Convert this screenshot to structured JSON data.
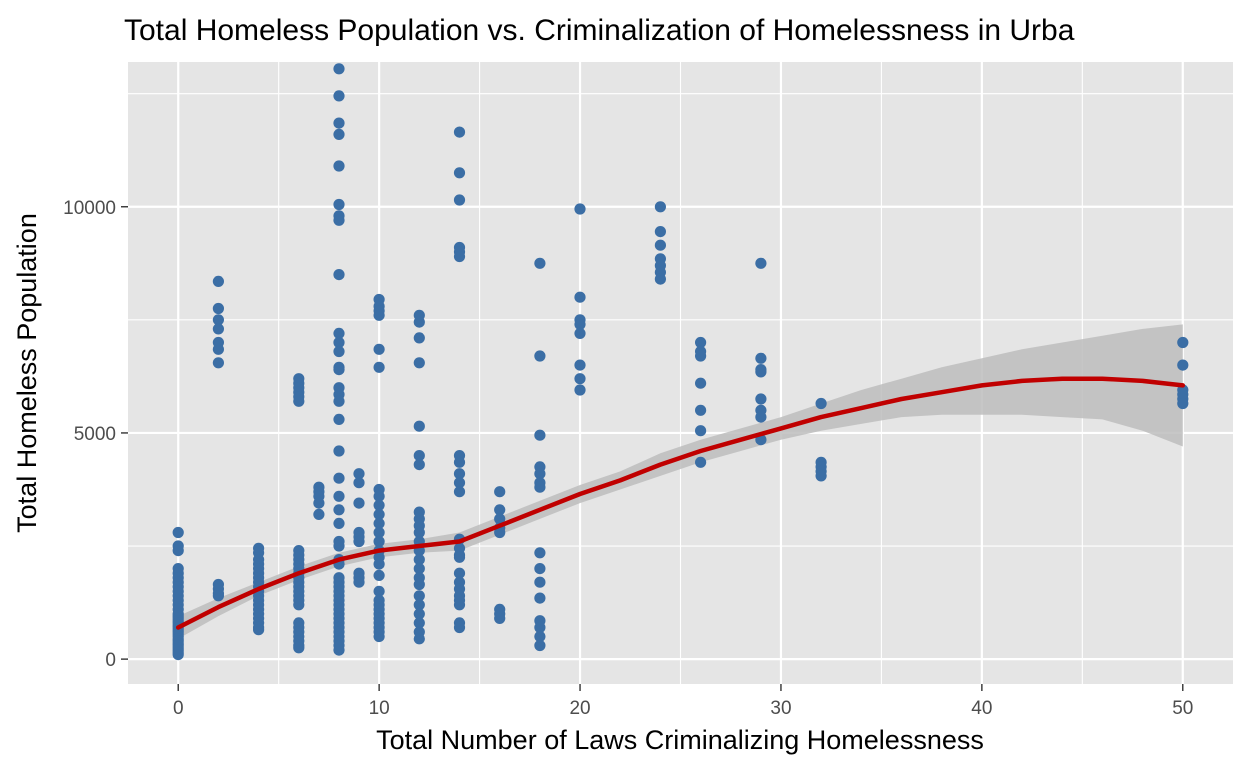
{
  "chart_data": {
    "type": "scatter",
    "title": "Total Homeless Population vs. Criminalization of Homelessness in Urba",
    "xlabel": "Total Number of Laws Criminalizing Homelessness",
    "ylabel": "Total Homeless Population",
    "xlim": [
      -2.5,
      52.5
    ],
    "ylim": [
      -550,
      13200
    ],
    "x_ticks": [
      0,
      10,
      20,
      30,
      40,
      50
    ],
    "x_tick_labels": [
      "0",
      "10",
      "20",
      "30",
      "40",
      "50"
    ],
    "y_ticks": [
      0,
      5000,
      10000
    ],
    "y_tick_labels": [
      "0",
      "5000",
      "10000"
    ],
    "grid": true,
    "colors": {
      "panel_background": "#e5e5e5",
      "grid_line": "#ffffff",
      "points": "#3b6ea5",
      "smooth_line": "#c00000",
      "confidence_band": "#bdbdbd"
    },
    "points": [
      [
        0,
        2800
      ],
      [
        0,
        2500
      ],
      [
        0,
        2400
      ],
      [
        0,
        2000
      ],
      [
        0,
        1900
      ],
      [
        0,
        1800
      ],
      [
        0,
        1700
      ],
      [
        0,
        1600
      ],
      [
        0,
        1500
      ],
      [
        0,
        1400
      ],
      [
        0,
        1300
      ],
      [
        0,
        1200
      ],
      [
        0,
        1100
      ],
      [
        0,
        1000
      ],
      [
        0,
        950
      ],
      [
        0,
        900
      ],
      [
        0,
        850
      ],
      [
        0,
        800
      ],
      [
        0,
        750
      ],
      [
        0,
        700
      ],
      [
        0,
        650
      ],
      [
        0,
        600
      ],
      [
        0,
        550
      ],
      [
        0,
        500
      ],
      [
        0,
        450
      ],
      [
        0,
        400
      ],
      [
        0,
        350
      ],
      [
        0,
        300
      ],
      [
        0,
        250
      ],
      [
        0,
        200
      ],
      [
        0,
        150
      ],
      [
        0,
        100
      ],
      [
        2,
        8350
      ],
      [
        2,
        7750
      ],
      [
        2,
        7500
      ],
      [
        2,
        7300
      ],
      [
        2,
        7000
      ],
      [
        2,
        6850
      ],
      [
        2,
        6550
      ],
      [
        2,
        1650
      ],
      [
        2,
        1550
      ],
      [
        2,
        1450
      ],
      [
        2,
        1400
      ],
      [
        4,
        2450
      ],
      [
        4,
        2350
      ],
      [
        4,
        2200
      ],
      [
        4,
        2100
      ],
      [
        4,
        2000
      ],
      [
        4,
        1900
      ],
      [
        4,
        1800
      ],
      [
        4,
        1700
      ],
      [
        4,
        1600
      ],
      [
        4,
        1500
      ],
      [
        4,
        1400
      ],
      [
        4,
        1300
      ],
      [
        4,
        1200
      ],
      [
        4,
        1100
      ],
      [
        4,
        1000
      ],
      [
        4,
        900
      ],
      [
        4,
        800
      ],
      [
        4,
        700
      ],
      [
        4,
        650
      ],
      [
        6,
        6200
      ],
      [
        6,
        6100
      ],
      [
        6,
        6000
      ],
      [
        6,
        5900
      ],
      [
        6,
        5800
      ],
      [
        6,
        5700
      ],
      [
        6,
        2400
      ],
      [
        6,
        2300
      ],
      [
        6,
        2200
      ],
      [
        6,
        2100
      ],
      [
        6,
        2000
      ],
      [
        6,
        1900
      ],
      [
        6,
        1800
      ],
      [
        6,
        1700
      ],
      [
        6,
        1600
      ],
      [
        6,
        1500
      ],
      [
        6,
        1400
      ],
      [
        6,
        1300
      ],
      [
        6,
        1200
      ],
      [
        6,
        800
      ],
      [
        6,
        700
      ],
      [
        6,
        600
      ],
      [
        6,
        500
      ],
      [
        6,
        400
      ],
      [
        6,
        300
      ],
      [
        6,
        250
      ],
      [
        7,
        3800
      ],
      [
        7,
        3700
      ],
      [
        7,
        3600
      ],
      [
        7,
        3450
      ],
      [
        7,
        3200
      ],
      [
        8,
        13050
      ],
      [
        8,
        12450
      ],
      [
        8,
        11850
      ],
      [
        8,
        11600
      ],
      [
        8,
        10900
      ],
      [
        8,
        10050
      ],
      [
        8,
        9800
      ],
      [
        8,
        9700
      ],
      [
        8,
        8500
      ],
      [
        8,
        7200
      ],
      [
        8,
        7000
      ],
      [
        8,
        6800
      ],
      [
        8,
        6450
      ],
      [
        8,
        6400
      ],
      [
        8,
        6000
      ],
      [
        8,
        5850
      ],
      [
        8,
        5700
      ],
      [
        8,
        5300
      ],
      [
        8,
        4600
      ],
      [
        8,
        4000
      ],
      [
        8,
        3600
      ],
      [
        8,
        3300
      ],
      [
        8,
        3000
      ],
      [
        8,
        2600
      ],
      [
        8,
        2500
      ],
      [
        8,
        2200
      ],
      [
        8,
        2100
      ],
      [
        8,
        1800
      ],
      [
        8,
        1700
      ],
      [
        8,
        1600
      ],
      [
        8,
        1500
      ],
      [
        8,
        1400
      ],
      [
        8,
        1300
      ],
      [
        8,
        1200
      ],
      [
        8,
        1100
      ],
      [
        8,
        1000
      ],
      [
        8,
        900
      ],
      [
        8,
        800
      ],
      [
        8,
        700
      ],
      [
        8,
        600
      ],
      [
        8,
        500
      ],
      [
        8,
        400
      ],
      [
        8,
        300
      ],
      [
        8,
        200
      ],
      [
        9,
        4100
      ],
      [
        9,
        3900
      ],
      [
        9,
        3450
      ],
      [
        9,
        2800
      ],
      [
        9,
        2700
      ],
      [
        9,
        2600
      ],
      [
        9,
        1900
      ],
      [
        9,
        1800
      ],
      [
        9,
        1700
      ],
      [
        10,
        7950
      ],
      [
        10,
        7800
      ],
      [
        10,
        7700
      ],
      [
        10,
        7600
      ],
      [
        10,
        6850
      ],
      [
        10,
        6450
      ],
      [
        10,
        3750
      ],
      [
        10,
        3600
      ],
      [
        10,
        3400
      ],
      [
        10,
        3200
      ],
      [
        10,
        3000
      ],
      [
        10,
        2800
      ],
      [
        10,
        2600
      ],
      [
        10,
        2400
      ],
      [
        10,
        2250
      ],
      [
        10,
        2100
      ],
      [
        10,
        1850
      ],
      [
        10,
        1500
      ],
      [
        10,
        1300
      ],
      [
        10,
        1200
      ],
      [
        10,
        1100
      ],
      [
        10,
        1000
      ],
      [
        10,
        900
      ],
      [
        10,
        800
      ],
      [
        10,
        700
      ],
      [
        10,
        600
      ],
      [
        10,
        500
      ],
      [
        12,
        7600
      ],
      [
        12,
        7450
      ],
      [
        12,
        7100
      ],
      [
        12,
        6550
      ],
      [
        12,
        5150
      ],
      [
        12,
        4500
      ],
      [
        12,
        4300
      ],
      [
        12,
        3250
      ],
      [
        12,
        3100
      ],
      [
        12,
        2950
      ],
      [
        12,
        2800
      ],
      [
        12,
        2600
      ],
      [
        12,
        2400
      ],
      [
        12,
        2200
      ],
      [
        12,
        2000
      ],
      [
        12,
        1800
      ],
      [
        12,
        1650
      ],
      [
        12,
        1400
      ],
      [
        12,
        1200
      ],
      [
        12,
        1000
      ],
      [
        12,
        800
      ],
      [
        12,
        600
      ],
      [
        12,
        450
      ],
      [
        14,
        11650
      ],
      [
        14,
        10750
      ],
      [
        14,
        10150
      ],
      [
        14,
        9100
      ],
      [
        14,
        9000
      ],
      [
        14,
        8900
      ],
      [
        14,
        4500
      ],
      [
        14,
        4350
      ],
      [
        14,
        4100
      ],
      [
        14,
        3900
      ],
      [
        14,
        3700
      ],
      [
        14,
        2650
      ],
      [
        14,
        2450
      ],
      [
        14,
        2300
      ],
      [
        14,
        2250
      ],
      [
        14,
        1900
      ],
      [
        14,
        1700
      ],
      [
        14,
        1550
      ],
      [
        14,
        1400
      ],
      [
        14,
        1300
      ],
      [
        14,
        1200
      ],
      [
        14,
        800
      ],
      [
        14,
        700
      ],
      [
        16,
        3700
      ],
      [
        16,
        3300
      ],
      [
        16,
        3100
      ],
      [
        16,
        2900
      ],
      [
        16,
        2800
      ],
      [
        16,
        1100
      ],
      [
        16,
        1000
      ],
      [
        16,
        900
      ],
      [
        18,
        8750
      ],
      [
        18,
        6700
      ],
      [
        18,
        4950
      ],
      [
        18,
        4250
      ],
      [
        18,
        4100
      ],
      [
        18,
        3900
      ],
      [
        18,
        3800
      ],
      [
        18,
        2350
      ],
      [
        18,
        2000
      ],
      [
        18,
        1700
      ],
      [
        18,
        1350
      ],
      [
        18,
        850
      ],
      [
        18,
        700
      ],
      [
        18,
        500
      ],
      [
        18,
        300
      ],
      [
        20,
        9950
      ],
      [
        20,
        8000
      ],
      [
        20,
        7500
      ],
      [
        20,
        7400
      ],
      [
        20,
        7200
      ],
      [
        20,
        6500
      ],
      [
        20,
        6200
      ],
      [
        20,
        5950
      ],
      [
        24,
        10000
      ],
      [
        24,
        9450
      ],
      [
        24,
        9150
      ],
      [
        24,
        8850
      ],
      [
        24,
        8700
      ],
      [
        24,
        8550
      ],
      [
        24,
        8400
      ],
      [
        26,
        7000
      ],
      [
        26,
        6800
      ],
      [
        26,
        6700
      ],
      [
        26,
        6100
      ],
      [
        26,
        5500
      ],
      [
        26,
        5050
      ],
      [
        26,
        4350
      ],
      [
        29,
        8750
      ],
      [
        29,
        6650
      ],
      [
        29,
        6400
      ],
      [
        29,
        6350
      ],
      [
        29,
        5750
      ],
      [
        29,
        5500
      ],
      [
        29,
        5350
      ],
      [
        29,
        4850
      ],
      [
        32,
        5650
      ],
      [
        32,
        4350
      ],
      [
        32,
        4250
      ],
      [
        32,
        4150
      ],
      [
        32,
        4050
      ],
      [
        50,
        7000
      ],
      [
        50,
        6500
      ],
      [
        50,
        5950
      ],
      [
        50,
        5850
      ],
      [
        50,
        5750
      ],
      [
        50,
        5650
      ]
    ],
    "smooth": {
      "x": [
        0,
        2,
        4,
        6,
        8,
        10,
        12,
        14,
        16,
        18,
        20,
        22,
        24,
        26,
        28,
        30,
        32,
        34,
        36,
        38,
        40,
        42,
        44,
        46,
        48,
        50
      ],
      "y": [
        700,
        1150,
        1550,
        1900,
        2200,
        2400,
        2500,
        2600,
        2950,
        3300,
        3650,
        3950,
        4300,
        4600,
        4850,
        5100,
        5350,
        5550,
        5750,
        5900,
        6050,
        6150,
        6200,
        6200,
        6150,
        6050
      ],
      "lower": [
        450,
        950,
        1400,
        1750,
        2050,
        2250,
        2350,
        2400,
        2750,
        3100,
        3450,
        3750,
        4050,
        4350,
        4600,
        4850,
        5050,
        5200,
        5350,
        5400,
        5400,
        5400,
        5350,
        5300,
        5050,
        4700
      ],
      "upper": [
        950,
        1350,
        1700,
        2050,
        2350,
        2550,
        2650,
        2800,
        3150,
        3500,
        3850,
        4150,
        4550,
        4850,
        5100,
        5350,
        5650,
        5950,
        6200,
        6450,
        6650,
        6850,
        7000,
        7150,
        7300,
        7400
      ]
    }
  }
}
